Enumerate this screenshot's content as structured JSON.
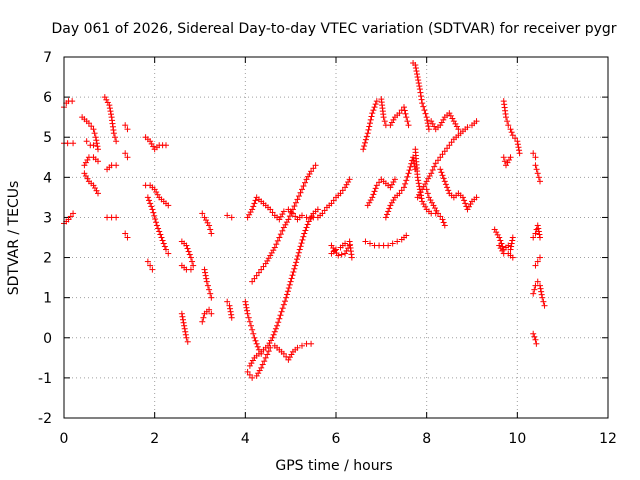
{
  "chart_data": {
    "type": "scatter",
    "title": "Day 061 of 2026, Sidereal Day-to-day VTEC variation (SDTVAR) for receiver pygr",
    "xlabel": "GPS time / hours",
    "ylabel": "SDTVAR / TECUs",
    "xlim": [
      0,
      12
    ],
    "ylim": [
      -2,
      7
    ],
    "x_ticks": [
      0,
      2,
      4,
      6,
      8,
      10,
      12
    ],
    "y_ticks": [
      -2,
      -1,
      0,
      1,
      2,
      3,
      4,
      5,
      6,
      7
    ],
    "grid": true,
    "marker": "+",
    "color": "#ff0000",
    "segments": [
      [
        [
          0.0,
          5.75
        ],
        [
          0.05,
          5.85
        ],
        [
          0.1,
          5.9
        ],
        [
          0.18,
          5.9
        ]
      ],
      [
        [
          0.0,
          4.85
        ],
        [
          0.08,
          4.85
        ],
        [
          0.2,
          4.85
        ]
      ],
      [
        [
          0.0,
          2.85
        ],
        [
          0.1,
          2.95
        ],
        [
          0.2,
          3.1
        ]
      ],
      [
        [
          0.4,
          5.5
        ],
        [
          0.55,
          5.35
        ],
        [
          0.65,
          5.2
        ],
        [
          0.7,
          5.0
        ],
        [
          0.75,
          4.7
        ]
      ],
      [
        [
          0.45,
          4.3
        ],
        [
          0.55,
          4.5
        ],
        [
          0.65,
          4.5
        ],
        [
          0.75,
          4.4
        ]
      ],
      [
        [
          0.45,
          4.1
        ],
        [
          0.55,
          3.9
        ],
        [
          0.65,
          3.8
        ],
        [
          0.75,
          3.6
        ]
      ],
      [
        [
          0.5,
          4.9
        ],
        [
          0.58,
          4.8
        ],
        [
          0.65,
          4.8
        ]
      ],
      [
        [
          0.9,
          6.0
        ],
        [
          1.0,
          5.8
        ],
        [
          1.05,
          5.5
        ],
        [
          1.1,
          5.1
        ],
        [
          1.15,
          4.9
        ]
      ],
      [
        [
          0.95,
          4.2
        ],
        [
          1.05,
          4.3
        ],
        [
          1.15,
          4.3
        ]
      ],
      [
        [
          0.95,
          3.0
        ],
        [
          1.05,
          3.0
        ],
        [
          1.15,
          3.0
        ]
      ],
      [
        [
          1.35,
          5.3
        ],
        [
          1.4,
          5.2
        ]
      ],
      [
        [
          1.35,
          4.6
        ],
        [
          1.4,
          4.5
        ]
      ],
      [
        [
          1.35,
          2.6
        ],
        [
          1.4,
          2.5
        ]
      ],
      [
        [
          1.8,
          5.0
        ],
        [
          1.9,
          4.9
        ],
        [
          2.0,
          4.7
        ],
        [
          2.1,
          4.8
        ],
        [
          2.25,
          4.8
        ]
      ],
      [
        [
          1.8,
          3.8
        ],
        [
          1.9,
          3.8
        ],
        [
          2.0,
          3.7
        ],
        [
          2.1,
          3.5
        ],
        [
          2.2,
          3.4
        ],
        [
          2.3,
          3.3
        ]
      ],
      [
        [
          1.85,
          3.5
        ],
        [
          1.95,
          3.2
        ],
        [
          2.05,
          2.8
        ],
        [
          2.15,
          2.5
        ],
        [
          2.25,
          2.2
        ],
        [
          2.3,
          2.1
        ]
      ],
      [
        [
          1.85,
          1.9
        ],
        [
          1.9,
          1.8
        ],
        [
          1.95,
          1.7
        ]
      ],
      [
        [
          2.6,
          2.4
        ],
        [
          2.7,
          2.3
        ],
        [
          2.8,
          2.0
        ],
        [
          2.85,
          1.8
        ]
      ],
      [
        [
          2.6,
          1.8
        ],
        [
          2.7,
          1.7
        ],
        [
          2.8,
          1.7
        ]
      ],
      [
        [
          2.6,
          0.6
        ],
        [
          2.65,
          0.3
        ],
        [
          2.7,
          0.0
        ],
        [
          2.73,
          -0.1
        ]
      ],
      [
        [
          3.05,
          3.1
        ],
        [
          3.1,
          3.0
        ],
        [
          3.2,
          2.8
        ],
        [
          3.25,
          2.6
        ]
      ],
      [
        [
          3.1,
          1.7
        ],
        [
          3.15,
          1.4
        ],
        [
          3.2,
          1.2
        ],
        [
          3.25,
          1.0
        ]
      ],
      [
        [
          3.05,
          0.4
        ],
        [
          3.1,
          0.6
        ],
        [
          3.2,
          0.7
        ],
        [
          3.25,
          0.6
        ]
      ],
      [
        [
          3.6,
          3.05
        ],
        [
          3.7,
          3.0
        ]
      ],
      [
        [
          3.6,
          0.9
        ],
        [
          3.65,
          0.8
        ],
        [
          3.7,
          0.5
        ]
      ],
      [
        [
          4.05,
          -0.85
        ],
        [
          4.15,
          -1.0
        ],
        [
          4.25,
          -0.95
        ],
        [
          4.35,
          -0.75
        ],
        [
          4.45,
          -0.5
        ],
        [
          4.55,
          -0.25
        ],
        [
          4.65,
          -0.2
        ],
        [
          4.75,
          -0.3
        ],
        [
          4.85,
          -0.4
        ],
        [
          4.95,
          -0.55
        ],
        [
          5.05,
          -0.35
        ],
        [
          5.15,
          -0.25
        ],
        [
          5.25,
          -0.2
        ],
        [
          5.35,
          -0.15
        ],
        [
          5.45,
          -0.15
        ]
      ],
      [
        [
          4.1,
          -0.7
        ],
        [
          4.2,
          -0.5
        ],
        [
          4.3,
          -0.4
        ],
        [
          4.4,
          -0.3
        ],
        [
          4.5,
          -0.2
        ],
        [
          4.6,
          0.0
        ],
        [
          4.7,
          0.3
        ],
        [
          4.8,
          0.65
        ],
        [
          4.9,
          1.0
        ],
        [
          5.0,
          1.4
        ],
        [
          5.1,
          1.8
        ],
        [
          5.2,
          2.2
        ],
        [
          5.3,
          2.6
        ],
        [
          5.4,
          2.9
        ],
        [
          5.5,
          3.1
        ],
        [
          5.6,
          3.2
        ]
      ],
      [
        [
          4.0,
          0.9
        ],
        [
          4.05,
          0.6
        ],
        [
          4.1,
          0.4
        ],
        [
          4.15,
          0.2
        ],
        [
          4.2,
          0.0
        ],
        [
          4.25,
          -0.15
        ],
        [
          4.3,
          -0.3
        ],
        [
          4.35,
          -0.4
        ]
      ],
      [
        [
          4.05,
          3.0
        ],
        [
          4.15,
          3.2
        ],
        [
          4.25,
          3.5
        ],
        [
          4.35,
          3.4
        ],
        [
          4.45,
          3.3
        ],
        [
          4.55,
          3.2
        ],
        [
          4.65,
          3.05
        ],
        [
          4.75,
          2.95
        ],
        [
          4.85,
          3.15
        ],
        [
          4.95,
          3.2
        ],
        [
          5.05,
          3.1
        ],
        [
          5.15,
          2.95
        ],
        [
          5.25,
          3.05
        ],
        [
          5.35,
          3.0
        ],
        [
          5.45,
          3.0
        ]
      ],
      [
        [
          4.15,
          1.4
        ],
        [
          4.25,
          1.55
        ],
        [
          4.35,
          1.7
        ],
        [
          4.45,
          1.85
        ],
        [
          4.55,
          2.05
        ],
        [
          4.65,
          2.25
        ],
        [
          4.75,
          2.5
        ],
        [
          4.85,
          2.75
        ],
        [
          4.95,
          2.95
        ],
        [
          5.05,
          3.2
        ],
        [
          5.15,
          3.45
        ],
        [
          5.25,
          3.7
        ],
        [
          5.35,
          3.95
        ],
        [
          5.45,
          4.15
        ],
        [
          5.55,
          4.3
        ]
      ],
      [
        [
          5.5,
          3.0
        ],
        [
          5.6,
          3.0
        ],
        [
          5.7,
          3.1
        ],
        [
          5.8,
          3.25
        ],
        [
          5.9,
          3.35
        ],
        [
          6.0,
          3.5
        ],
        [
          6.1,
          3.6
        ],
        [
          6.2,
          3.75
        ],
        [
          6.3,
          3.95
        ]
      ],
      [
        [
          5.9,
          2.1
        ],
        [
          6.0,
          2.2
        ],
        [
          6.1,
          2.25
        ],
        [
          6.2,
          2.35
        ],
        [
          6.3,
          2.4
        ],
        [
          6.35,
          2.0
        ]
      ],
      [
        [
          5.9,
          2.3
        ],
        [
          6.05,
          2.05
        ],
        [
          6.2,
          2.1
        ],
        [
          6.3,
          2.3
        ]
      ],
      [
        [
          6.6,
          4.7
        ],
        [
          6.7,
          5.1
        ],
        [
          6.8,
          5.6
        ],
        [
          6.9,
          5.9
        ],
        [
          7.0,
          5.95
        ],
        [
          7.05,
          5.5
        ],
        [
          7.1,
          5.3
        ]
      ],
      [
        [
          6.65,
          2.4
        ],
        [
          6.75,
          2.35
        ],
        [
          6.85,
          2.3
        ],
        [
          6.95,
          2.3
        ],
        [
          7.05,
          2.3
        ],
        [
          7.15,
          2.3
        ],
        [
          7.25,
          2.35
        ],
        [
          7.35,
          2.4
        ],
        [
          7.45,
          2.45
        ],
        [
          7.55,
          2.55
        ]
      ],
      [
        [
          6.7,
          3.3
        ],
        [
          6.8,
          3.5
        ],
        [
          6.9,
          3.8
        ],
        [
          7.0,
          3.95
        ],
        [
          7.1,
          3.85
        ],
        [
          7.2,
          3.75
        ],
        [
          7.3,
          3.95
        ]
      ],
      [
        [
          7.1,
          3.0
        ],
        [
          7.2,
          3.3
        ],
        [
          7.3,
          3.5
        ],
        [
          7.4,
          3.6
        ],
        [
          7.5,
          3.75
        ],
        [
          7.6,
          4.1
        ],
        [
          7.7,
          4.5
        ],
        [
          7.75,
          4.2
        ]
      ],
      [
        [
          7.2,
          5.3
        ],
        [
          7.3,
          5.5
        ],
        [
          7.4,
          5.6
        ],
        [
          7.5,
          5.75
        ],
        [
          7.55,
          5.5
        ],
        [
          7.6,
          5.3
        ]
      ],
      [
        [
          7.7,
          6.85
        ],
        [
          7.75,
          6.8
        ],
        [
          7.8,
          6.5
        ],
        [
          7.85,
          6.2
        ],
        [
          7.9,
          5.85
        ],
        [
          8.0,
          5.5
        ],
        [
          8.05,
          5.2
        ]
      ],
      [
        [
          7.75,
          4.7
        ],
        [
          7.8,
          4.0
        ],
        [
          7.85,
          3.7
        ],
        [
          7.9,
          3.4
        ],
        [
          8.0,
          3.2
        ],
        [
          8.1,
          3.1
        ],
        [
          8.2,
          3.1
        ]
      ],
      [
        [
          7.8,
          3.5
        ],
        [
          7.9,
          3.7
        ],
        [
          8.0,
          3.9
        ],
        [
          8.1,
          4.1
        ],
        [
          8.2,
          4.35
        ],
        [
          8.3,
          4.5
        ],
        [
          8.4,
          4.65
        ],
        [
          8.5,
          4.8
        ],
        [
          8.6,
          4.95
        ],
        [
          8.7,
          5.05
        ],
        [
          8.8,
          5.15
        ],
        [
          8.9,
          5.25
        ],
        [
          9.0,
          5.3
        ],
        [
          9.1,
          5.4
        ]
      ],
      [
        [
          8.0,
          3.7
        ],
        [
          8.05,
          3.5
        ],
        [
          8.15,
          3.3
        ],
        [
          8.25,
          3.1
        ],
        [
          8.35,
          2.95
        ],
        [
          8.4,
          2.8
        ]
      ],
      [
        [
          8.1,
          5.4
        ],
        [
          8.2,
          5.2
        ],
        [
          8.3,
          5.3
        ],
        [
          8.4,
          5.5
        ],
        [
          8.5,
          5.6
        ],
        [
          8.6,
          5.4
        ],
        [
          8.7,
          5.2
        ]
      ],
      [
        [
          8.3,
          4.2
        ],
        [
          8.4,
          3.9
        ],
        [
          8.5,
          3.6
        ],
        [
          8.6,
          3.5
        ],
        [
          8.7,
          3.6
        ],
        [
          8.8,
          3.5
        ],
        [
          8.9,
          3.2
        ],
        [
          9.0,
          3.4
        ],
        [
          9.1,
          3.5
        ]
      ],
      [
        [
          9.5,
          2.7
        ],
        [
          9.6,
          2.5
        ],
        [
          9.7,
          2.2
        ],
        [
          9.8,
          2.3
        ],
        [
          9.85,
          2.2
        ],
        [
          9.9,
          2.5
        ]
      ],
      [
        [
          9.6,
          2.3
        ],
        [
          9.7,
          2.1
        ],
        [
          9.8,
          2.1
        ],
        [
          9.9,
          2.0
        ]
      ],
      [
        [
          9.7,
          5.9
        ],
        [
          9.75,
          5.5
        ],
        [
          9.8,
          5.3
        ],
        [
          9.85,
          5.2
        ],
        [
          9.9,
          5.05
        ],
        [
          10.0,
          4.9
        ],
        [
          10.05,
          4.6
        ]
      ],
      [
        [
          9.7,
          4.5
        ],
        [
          9.75,
          4.3
        ],
        [
          9.85,
          4.5
        ]
      ],
      [
        [
          10.35,
          4.6
        ],
        [
          10.4,
          4.5
        ]
      ],
      [
        [
          10.4,
          4.3
        ],
        [
          10.45,
          4.1
        ],
        [
          10.5,
          3.9
        ]
      ],
      [
        [
          10.35,
          2.5
        ],
        [
          10.4,
          2.6
        ],
        [
          10.45,
          2.8
        ],
        [
          10.5,
          2.5
        ]
      ],
      [
        [
          10.35,
          1.1
        ],
        [
          10.4,
          1.3
        ],
        [
          10.45,
          1.4
        ],
        [
          10.5,
          1.3
        ],
        [
          10.55,
          1.0
        ],
        [
          10.6,
          0.8
        ]
      ],
      [
        [
          10.4,
          1.8
        ],
        [
          10.45,
          1.9
        ],
        [
          10.5,
          2.0
        ]
      ],
      [
        [
          10.35,
          0.1
        ],
        [
          10.4,
          -0.05
        ],
        [
          10.42,
          -0.15
        ]
      ]
    ]
  }
}
